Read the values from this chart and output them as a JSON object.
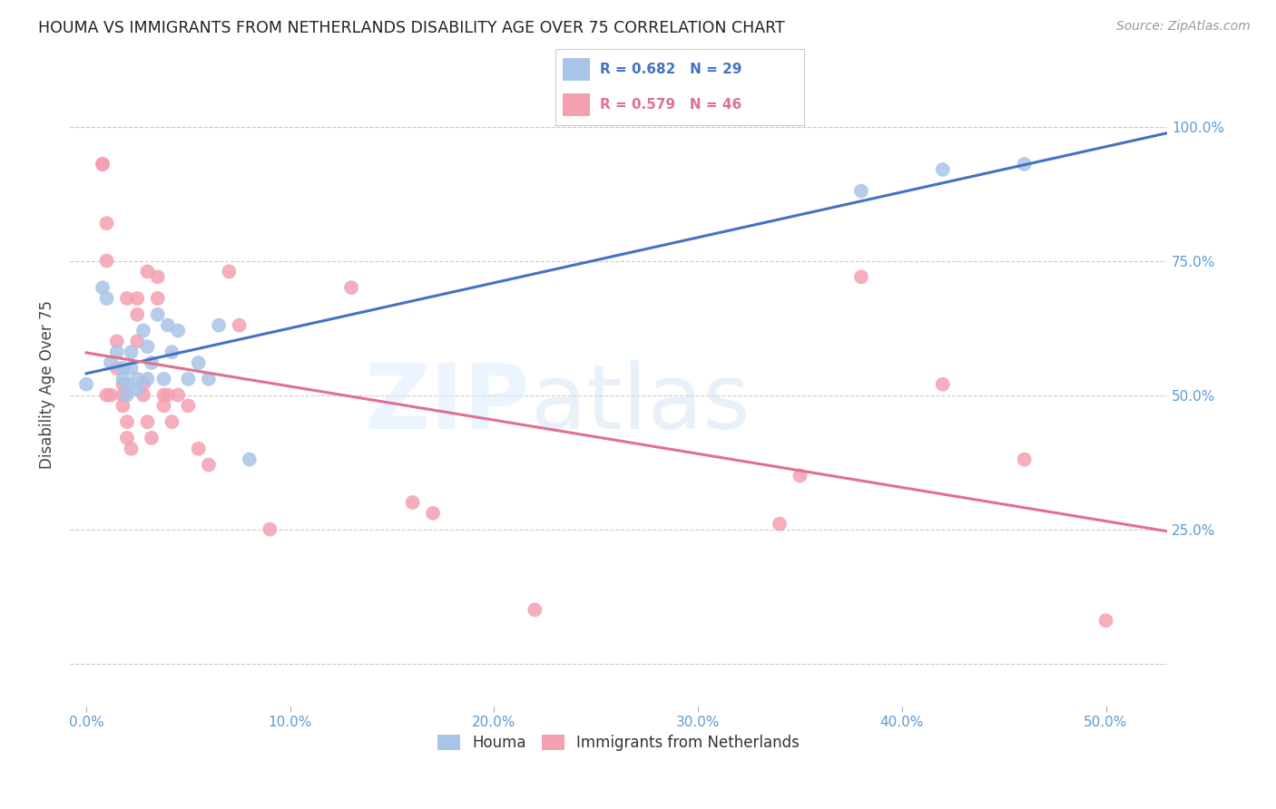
{
  "title": "HOUMA VS IMMIGRANTS FROM NETHERLANDS DISABILITY AGE OVER 75 CORRELATION CHART",
  "source": "Source: ZipAtlas.com",
  "ylabel": "Disability Age Over 75",
  "x_ticks": [
    0.0,
    0.1,
    0.2,
    0.3,
    0.4,
    0.5
  ],
  "x_tick_labels": [
    "0.0%",
    "10.0%",
    "20.0%",
    "30.0%",
    "40.0%",
    "50.0%"
  ],
  "y_ticks": [
    0.0,
    0.25,
    0.5,
    0.75,
    1.0
  ],
  "y_tick_labels_right": [
    "",
    "25.0%",
    "50.0%",
    "75.0%",
    "100.0%"
  ],
  "xlim": [
    -0.008,
    0.53
  ],
  "ylim": [
    -0.08,
    1.12
  ],
  "houma_color": "#a8c4e8",
  "netherlands_color": "#f4a0b0",
  "houma_line_color": "#4472c4",
  "netherlands_line_color": "#e07090",
  "houma_x": [
    0.0,
    0.008,
    0.01,
    0.012,
    0.015,
    0.018,
    0.018,
    0.02,
    0.02,
    0.022,
    0.022,
    0.025,
    0.025,
    0.028,
    0.03,
    0.03,
    0.032,
    0.035,
    0.038,
    0.04,
    0.042,
    0.045,
    0.05,
    0.055,
    0.06,
    0.065,
    0.08,
    0.38,
    0.42,
    0.46
  ],
  "houma_y": [
    0.52,
    0.7,
    0.68,
    0.56,
    0.58,
    0.55,
    0.53,
    0.52,
    0.5,
    0.58,
    0.55,
    0.53,
    0.51,
    0.62,
    0.59,
    0.53,
    0.56,
    0.65,
    0.53,
    0.63,
    0.58,
    0.62,
    0.53,
    0.56,
    0.53,
    0.63,
    0.38,
    0.88,
    0.92,
    0.93
  ],
  "netherlands_x": [
    0.008,
    0.008,
    0.01,
    0.01,
    0.01,
    0.012,
    0.015,
    0.015,
    0.018,
    0.018,
    0.018,
    0.02,
    0.02,
    0.02,
    0.022,
    0.025,
    0.025,
    0.025,
    0.028,
    0.028,
    0.03,
    0.03,
    0.032,
    0.035,
    0.035,
    0.038,
    0.038,
    0.04,
    0.042,
    0.045,
    0.05,
    0.055,
    0.06,
    0.07,
    0.075,
    0.09,
    0.13,
    0.16,
    0.17,
    0.22,
    0.34,
    0.35,
    0.38,
    0.42,
    0.46,
    0.5
  ],
  "netherlands_y": [
    0.93,
    0.93,
    0.82,
    0.75,
    0.5,
    0.5,
    0.6,
    0.55,
    0.52,
    0.5,
    0.48,
    0.68,
    0.45,
    0.42,
    0.4,
    0.68,
    0.65,
    0.6,
    0.52,
    0.5,
    0.45,
    0.73,
    0.42,
    0.72,
    0.68,
    0.5,
    0.48,
    0.5,
    0.45,
    0.5,
    0.48,
    0.4,
    0.37,
    0.73,
    0.63,
    0.25,
    0.7,
    0.3,
    0.28,
    0.1,
    0.26,
    0.35,
    0.72,
    0.52,
    0.38,
    0.08
  ]
}
